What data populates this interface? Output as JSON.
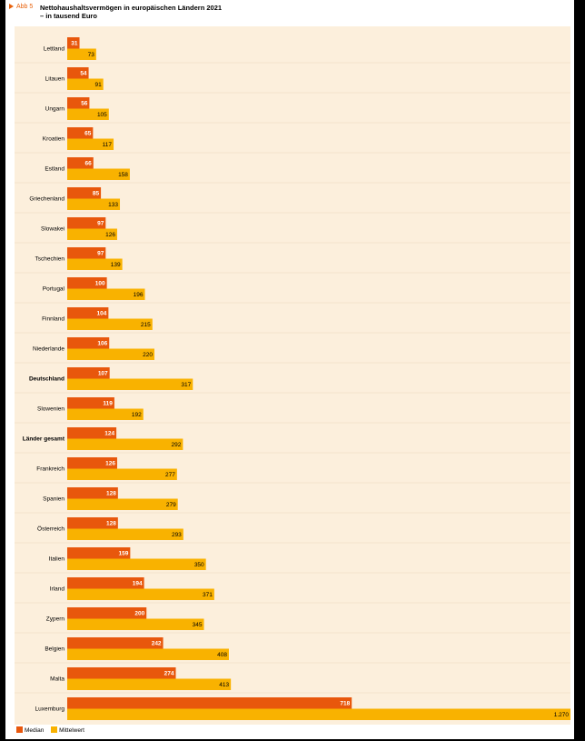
{
  "figure_label": "Abb 5",
  "title": "Nettohaushaltsvermögen in europäischen Ländern 2021",
  "subtitle": "– in tausend Euro",
  "colors": {
    "median": "#e8570c",
    "mittelwert": "#f9b200",
    "background": "#fcefdc"
  },
  "legend": {
    "median": "Median",
    "mittelwert": "Mittelwert"
  },
  "chart_data": {
    "type": "bar",
    "orientation": "horizontal",
    "title": "Nettohaushaltsvermögen in europäischen Ländern 2021",
    "subtitle": "– in tausend Euro",
    "categories": [
      "Lettland",
      "Litauen",
      "Ungarn",
      "Kroatien",
      "Estland",
      "Griechenland",
      "Slowakei",
      "Tschechien",
      "Portugal",
      "Finnland",
      "Niederlande",
      "Deutschland",
      "Slowenien",
      "Länder gesamt",
      "Frankreich",
      "Spanien",
      "Österreich",
      "Italien",
      "Irland",
      "Zypern",
      "Belgien",
      "Malta",
      "Luxemburg"
    ],
    "bold_categories": [
      "Deutschland",
      "Länder gesamt"
    ],
    "series": [
      {
        "name": "Median",
        "values": [
          31,
          54,
          56,
          65,
          66,
          85,
          97,
          97,
          100,
          104,
          106,
          107,
          119,
          124,
          126,
          128,
          128,
          159,
          194,
          200,
          242,
          274,
          718
        ],
        "labels": [
          "31",
          "54",
          "56",
          "65",
          "66",
          "85",
          "97",
          "97",
          "100",
          "104",
          "106",
          "107",
          "119",
          "124",
          "126",
          "128",
          "128",
          "159",
          "194",
          "200",
          "242",
          "274",
          "718"
        ]
      },
      {
        "name": "Mittelwert",
        "values": [
          73,
          91,
          105,
          117,
          158,
          133,
          126,
          139,
          196,
          215,
          220,
          317,
          192,
          292,
          277,
          279,
          293,
          350,
          371,
          345,
          408,
          413,
          1270
        ],
        "labels": [
          "73",
          "91",
          "105",
          "117",
          "158",
          "133",
          "126",
          "139",
          "196",
          "215",
          "220",
          "317",
          "192",
          "292",
          "277",
          "279",
          "293",
          "350",
          "371",
          "345",
          "408",
          "413",
          "1.270"
        ]
      }
    ],
    "xlim": [
      0,
      1270
    ],
    "grid": false,
    "legend_position": "bottom-left"
  }
}
